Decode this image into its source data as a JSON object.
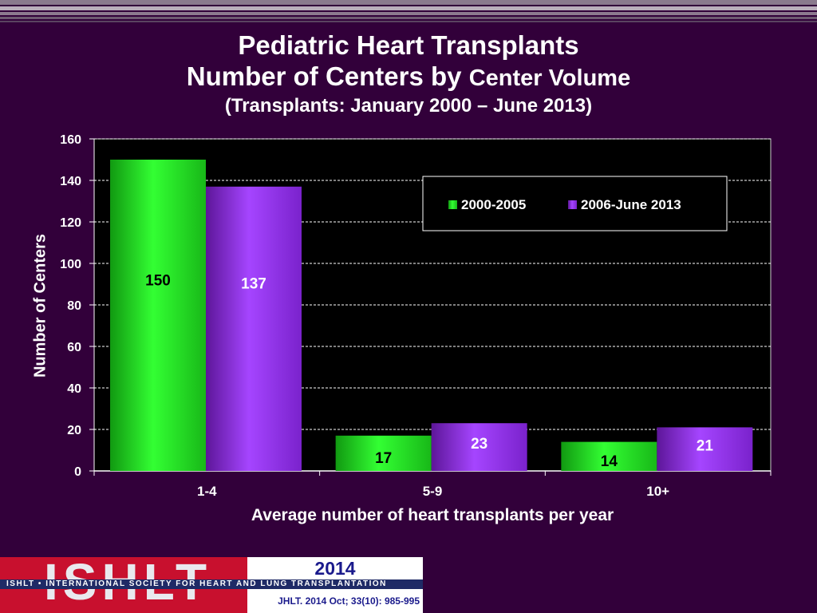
{
  "title": {
    "line1": "Pediatric Heart Transplants",
    "line2a": "Number of Centers by",
    "line2b": "Center Volume",
    "line3": "(Transplants: January  2000 – June 2013)"
  },
  "colors": {
    "background": "#32003a",
    "plot_area": "#000000",
    "series1": "#22dd22",
    "series2": "#9933ee"
  },
  "chart_data": {
    "type": "bar",
    "categories": [
      "1-4",
      "5-9",
      "10+"
    ],
    "series": [
      {
        "name": "2000-2005",
        "values": [
          150,
          17,
          14
        ]
      },
      {
        "name": "2006-June 2013",
        "values": [
          137,
          23,
          21
        ]
      }
    ],
    "xlabel": "Average number of heart transplants per year",
    "ylabel": "Number of Centers",
    "ylim": [
      0,
      160
    ],
    "yticks": [
      "0",
      "20",
      "40",
      "60",
      "80",
      "100",
      "120",
      "140",
      "160"
    ],
    "grid": true,
    "legend_position": "top-right"
  },
  "footer": {
    "logo_text": "ISHLT",
    "year": "2014",
    "band_text": "ISHLT • INTERNATIONAL SOCIETY FOR HEART AND LUNG TRANSPLANTATION",
    "citation": "JHLT. 2014 Oct; 33(10): 985-995"
  }
}
